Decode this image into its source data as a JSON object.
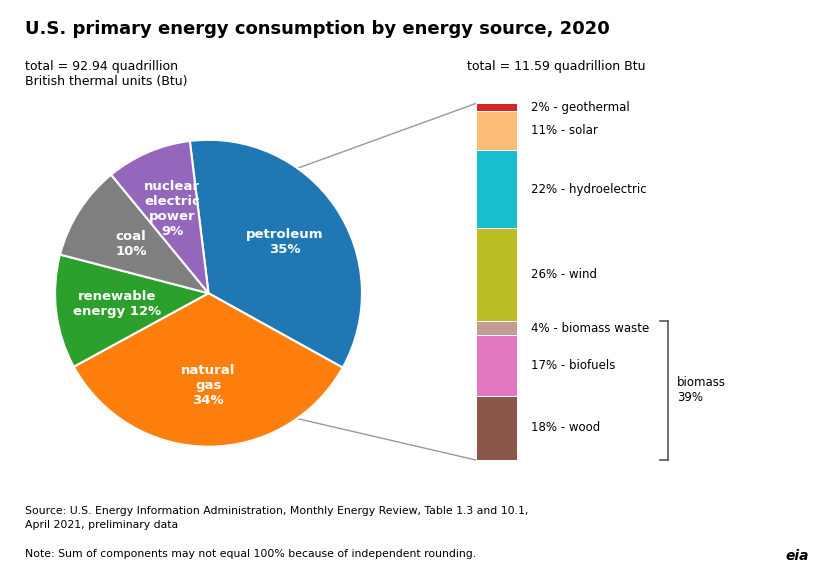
{
  "title": "U.S. primary energy consumption by energy source, 2020",
  "chart_data": [
    {
      "type": "pie",
      "subtitle": "total = 92.94 quadrillion\nBritish thermal units (Btu)",
      "values": [
        35,
        34,
        12,
        10,
        9
      ],
      "value_labels": [
        "petroleum\n35%",
        "natural\ngas\n34%",
        "renewable\nenergy 12%",
        "coal\n10%",
        "nuclear\nelectric\npower\n9%"
      ],
      "colors": [
        "#1f77b4",
        "#ff7f0e",
        "#2ca02c",
        "#7f7f7f",
        "#9467bd"
      ]
    },
    {
      "type": "bar",
      "stacked": true,
      "subtitle": "total = 11.59 quadrillion Btu",
      "detail_of": "renewable\nenergy 12%",
      "values": [
        18,
        17,
        4,
        26,
        22,
        11,
        2
      ],
      "value_labels": [
        "18% - wood",
        "17% - biofuels",
        "4% - biomass waste",
        "26% - wind",
        "22% - hydroelectric",
        "11% - solar",
        "2% - geothermal"
      ],
      "colors": [
        "#8c564b",
        "#e377c2",
        "#c49c94",
        "#bcbd22",
        "#17becf",
        "#ffbb78",
        "#d62728"
      ],
      "ylim": [
        0,
        100
      ],
      "tick_labels": false,
      "annotations": [
        {
          "text": "biomass\n39%",
          "from": 0,
          "to": 39
        }
      ]
    }
  ],
  "source": "Source: U.S. Energy Information Administration, Monthly Energy Review, Table 1.3 and 10.1,\nApril 2021, preliminary data",
  "note": "Note: Sum of components may not equal 100% because of independent rounding.",
  "credit": "eia"
}
